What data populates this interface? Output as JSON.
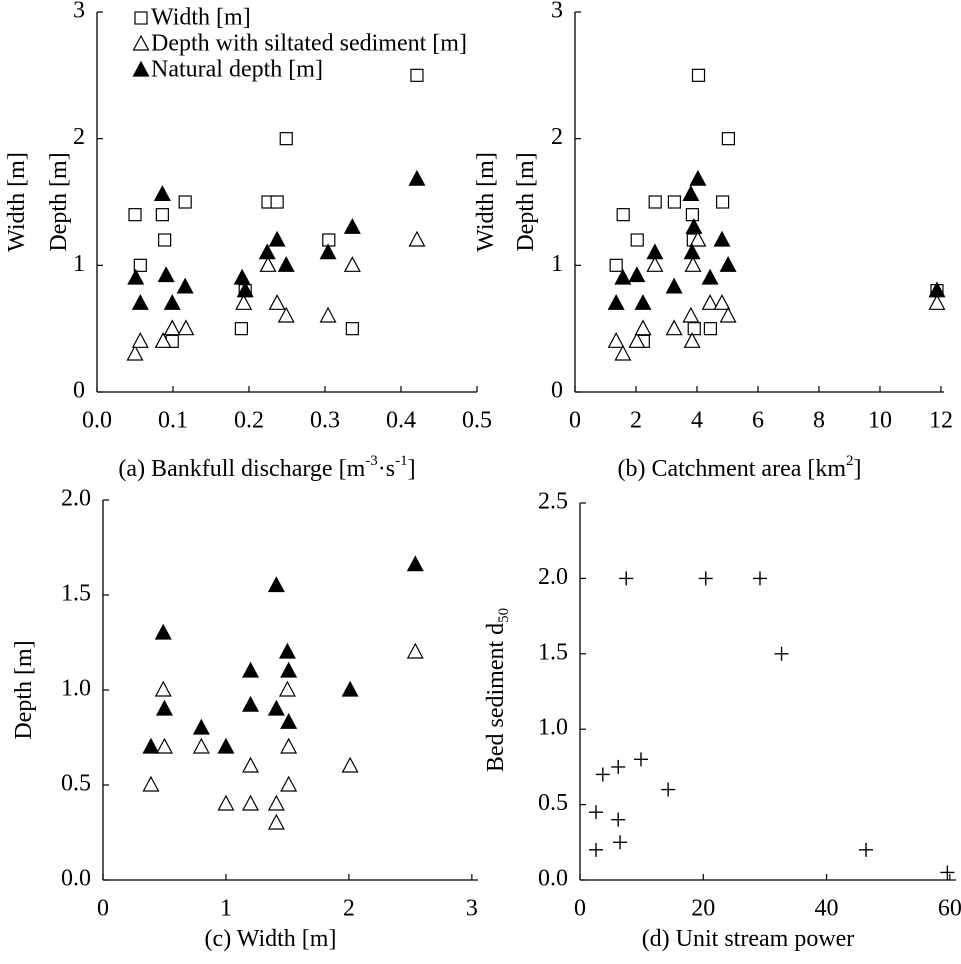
{
  "chart_data": [
    {
      "type": "scatter",
      "xlabel": [
        {
          "text": "(a) Bankfull discharge [m"
        },
        {
          "text": "-3",
          "script": "super"
        },
        {
          "text": "·s"
        },
        {
          "text": "-1",
          "script": "super"
        },
        {
          "text": "]"
        }
      ],
      "ylabel": [
        [
          {
            "text": "Width [m]"
          }
        ],
        [
          {
            "text": "Depth [m]"
          }
        ]
      ],
      "xlim": [
        0,
        0.5
      ],
      "ylim": [
        0,
        3
      ],
      "xticks": [
        {
          "value": 0,
          "label": "0.0"
        },
        0.1,
        0.2,
        0.3,
        0.4,
        0.5
      ],
      "yticks": [
        0,
        1,
        2,
        3
      ],
      "legend": "upper left",
      "series": [
        {
          "name": "Width [m]",
          "marker": "square-open",
          "color": "#000000",
          "x": [
            0.05,
            0.057,
            0.086,
            0.089,
            0.099,
            0.116,
            0.19,
            0.195,
            0.225,
            0.237,
            0.249,
            0.305,
            0.336,
            0.421
          ],
          "values": [
            1.4,
            1.0,
            1.4,
            1.2,
            0.4,
            1.5,
            0.5,
            0.8,
            1.5,
            1.5,
            2.0,
            1.2,
            0.5,
            2.5
          ]
        },
        {
          "name": "Depth with siltated sediment [m]",
          "marker": "triangle-open",
          "color": "#000000",
          "x": [
            0.05,
            0.057,
            0.087,
            0.099,
            0.117,
            0.193,
            0.225,
            0.237,
            0.249,
            0.304,
            0.336,
            0.421
          ],
          "values": [
            0.3,
            0.4,
            0.4,
            0.5,
            0.5,
            0.7,
            1.0,
            0.7,
            0.6,
            0.6,
            1.0,
            1.2
          ]
        },
        {
          "name": "Natural depth [m]",
          "marker": "triangle-filled",
          "color": "#000000",
          "x": [
            0.051,
            0.057,
            0.086,
            0.091,
            0.099,
            0.116,
            0.191,
            0.195,
            0.224,
            0.237,
            0.249,
            0.304,
            0.336,
            0.421
          ],
          "values": [
            0.9,
            0.7,
            1.56,
            0.92,
            0.7,
            0.83,
            0.9,
            0.8,
            1.1,
            1.2,
            1.0,
            1.1,
            1.3,
            1.68
          ]
        }
      ]
    },
    {
      "type": "scatter",
      "xlabel": [
        {
          "text": "(b) Catchment area [km"
        },
        {
          "text": "2",
          "script": "super"
        },
        {
          "text": "]"
        }
      ],
      "ylabel": [
        [
          {
            "text": "Width [m]"
          }
        ],
        [
          {
            "text": "Depth [m]"
          }
        ]
      ],
      "xlim": [
        0,
        12.1
      ],
      "ylim": [
        0,
        3
      ],
      "xticks": [
        0,
        2,
        4,
        6,
        8,
        10,
        12
      ],
      "yticks": [
        0,
        1,
        2,
        3
      ],
      "series": [
        {
          "name": "Width [m]",
          "marker": "square-open",
          "color": "#000000",
          "x": [
            1.35,
            1.58,
            2.04,
            2.24,
            2.63,
            3.26,
            3.85,
            3.88,
            3.91,
            4.05,
            4.44,
            4.84,
            5.03,
            11.87
          ],
          "values": [
            1.0,
            1.4,
            1.2,
            0.4,
            1.5,
            1.5,
            1.4,
            1.2,
            0.5,
            2.5,
            0.5,
            1.5,
            2.0,
            0.8
          ]
        },
        {
          "name": "Depth with siltated sediment [m]",
          "marker": "triangle-open",
          "color": "#000000",
          "x": [
            1.35,
            1.57,
            2.03,
            2.23,
            2.62,
            3.25,
            3.8,
            3.84,
            3.87,
            4.03,
            4.43,
            4.82,
            5.02,
            11.87
          ],
          "values": [
            0.4,
            0.3,
            0.4,
            0.5,
            1.0,
            0.5,
            0.6,
            0.4,
            1.0,
            1.2,
            0.7,
            0.7,
            0.6,
            0.7
          ]
        },
        {
          "name": "Natural depth [m]",
          "marker": "triangle-filled",
          "color": "#000000",
          "x": [
            1.35,
            1.57,
            2.03,
            2.23,
            2.62,
            3.25,
            3.8,
            3.84,
            3.9,
            4.03,
            4.43,
            4.82,
            5.02,
            11.87
          ],
          "values": [
            0.7,
            0.9,
            0.92,
            0.7,
            1.1,
            0.83,
            1.56,
            1.1,
            1.3,
            1.68,
            0.9,
            1.2,
            1.0,
            0.8
          ]
        }
      ]
    },
    {
      "type": "scatter",
      "xlabel": [
        {
          "text": "(c) Width [m]"
        }
      ],
      "ylabel": [
        [
          {
            "text": "Depth [m]"
          }
        ]
      ],
      "xlim": [
        0,
        3.05
      ],
      "ylim": [
        0,
        2
      ],
      "xticks": [
        0,
        1,
        2,
        3
      ],
      "yticks": [
        {
          "value": 0,
          "label": "0.0"
        },
        0.5,
        {
          "value": 1,
          "label": "1.0"
        },
        1.5,
        {
          "value": 2,
          "label": "2.0"
        }
      ],
      "series": [
        {
          "name": "Depth with siltated sediment [m]",
          "marker": "triangle-open",
          "color": "#000000",
          "x": [
            0.39,
            0.49,
            0.5,
            0.8,
            1.0,
            1.2,
            1.2,
            1.41,
            1.41,
            1.5,
            1.51,
            1.51,
            2.01,
            2.54
          ],
          "values": [
            0.5,
            1.0,
            0.7,
            0.7,
            0.4,
            0.6,
            0.4,
            0.4,
            0.3,
            1.0,
            0.7,
            0.5,
            0.6,
            1.2
          ]
        },
        {
          "name": "Natural depth [m]",
          "marker": "triangle-filled",
          "color": "#000000",
          "x": [
            0.39,
            0.49,
            0.5,
            0.8,
            1.0,
            1.2,
            1.2,
            1.41,
            1.41,
            1.5,
            1.51,
            1.51,
            2.01,
            2.54
          ],
          "values": [
            0.7,
            1.3,
            0.9,
            0.8,
            0.7,
            1.1,
            0.92,
            1.55,
            0.9,
            1.2,
            1.1,
            0.83,
            1.0,
            1.66
          ]
        }
      ]
    },
    {
      "type": "scatter",
      "xlabel": [
        {
          "text": "(d) Unit stream power"
        }
      ],
      "ylabel": [
        [
          {
            "text": "Bed sediment d"
          },
          {
            "text": "50",
            "script": "sub"
          }
        ]
      ],
      "xlim": [
        0,
        61
      ],
      "ylim": [
        0,
        2.5
      ],
      "xticks": [
        0,
        20,
        40,
        60
      ],
      "yticks": [
        {
          "value": 0,
          "label": "0.0"
        },
        0.5,
        {
          "value": 1,
          "label": "1.0"
        },
        1.5,
        {
          "value": 2,
          "label": "2.0"
        },
        2.5
      ],
      "series": [
        {
          "marker": "plus",
          "color": "#000000",
          "x": [
            2.6,
            2.6,
            3.7,
            6.2,
            6.2,
            6.5,
            7.5,
            9.9,
            14.3,
            20.4,
            29.2,
            32.7,
            46.4,
            59.6
          ],
          "values": [
            0.45,
            0.2,
            0.7,
            0.75,
            0.4,
            0.25,
            2.0,
            0.8,
            0.6,
            2.0,
            2.0,
            1.5,
            0.2,
            0.05
          ]
        }
      ]
    }
  ]
}
